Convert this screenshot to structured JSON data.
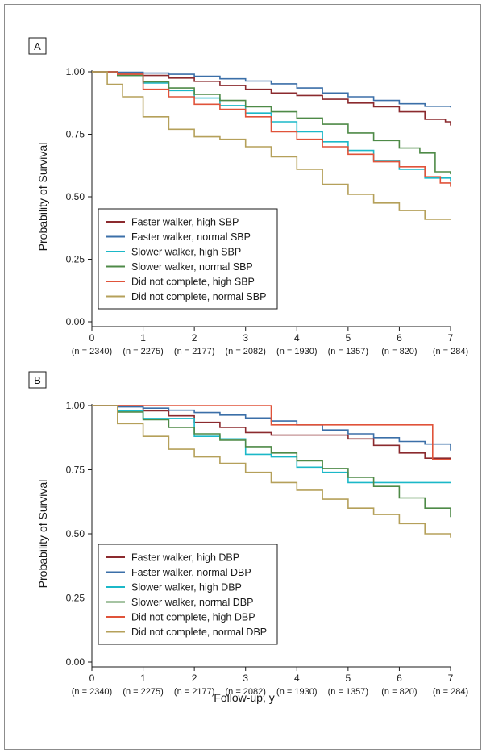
{
  "figure": {
    "common_xlabel": "Follow-up, y"
  },
  "chart_data": [
    {
      "type": "line",
      "panel_label": "A",
      "ylabel": "Probability of Survival",
      "xlabel": "Follow-up, y",
      "xlim": [
        0,
        7
      ],
      "ylim": [
        0,
        1
      ],
      "x_ticks": [
        0,
        1,
        2,
        3,
        4,
        5,
        6,
        7
      ],
      "y_ticks": [
        "0.00",
        "0.25",
        "0.50",
        "0.75",
        "1.00"
      ],
      "n_at_risk": [
        "(n = 2340)",
        "(n = 2275)",
        "(n = 2177)",
        "(n = 2082)",
        "(n = 1930)",
        "(n = 1357)",
        "(n = 820)",
        "(n = 284)"
      ],
      "legend": {
        "position": "bottom-left"
      },
      "series": [
        {
          "name": "Faster walker, high SBP",
          "color": "#8B2A2E",
          "points": [
            [
              0,
              1.0
            ],
            [
              0.5,
              0.995
            ],
            [
              1,
              0.985
            ],
            [
              1.5,
              0.975
            ],
            [
              2,
              0.962
            ],
            [
              2.5,
              0.945
            ],
            [
              3,
              0.93
            ],
            [
              3.5,
              0.915
            ],
            [
              4,
              0.905
            ],
            [
              4.5,
              0.89
            ],
            [
              5,
              0.875
            ],
            [
              5.5,
              0.86
            ],
            [
              6,
              0.84
            ],
            [
              6.5,
              0.81
            ],
            [
              6.9,
              0.8
            ],
            [
              7,
              0.785
            ]
          ]
        },
        {
          "name": "Faster walker, normal SBP",
          "color": "#3B6FA8",
          "points": [
            [
              0,
              1.0
            ],
            [
              0.5,
              0.998
            ],
            [
              1,
              0.995
            ],
            [
              1.5,
              0.99
            ],
            [
              2,
              0.982
            ],
            [
              2.5,
              0.972
            ],
            [
              3,
              0.963
            ],
            [
              3.5,
              0.952
            ],
            [
              4,
              0.935
            ],
            [
              4.5,
              0.915
            ],
            [
              5,
              0.9
            ],
            [
              5.5,
              0.885
            ],
            [
              6,
              0.872
            ],
            [
              6.5,
              0.862
            ],
            [
              7,
              0.857
            ]
          ]
        },
        {
          "name": "Slower walker, high SBP",
          "color": "#1BB8C8",
          "points": [
            [
              0,
              1.0
            ],
            [
              0.5,
              0.985
            ],
            [
              1,
              0.955
            ],
            [
              1.5,
              0.925
            ],
            [
              2,
              0.895
            ],
            [
              2.5,
              0.865
            ],
            [
              3,
              0.835
            ],
            [
              3.5,
              0.8
            ],
            [
              4,
              0.76
            ],
            [
              4.5,
              0.72
            ],
            [
              5,
              0.685
            ],
            [
              5.5,
              0.645
            ],
            [
              6,
              0.61
            ],
            [
              6.5,
              0.575
            ],
            [
              7,
              0.56
            ]
          ]
        },
        {
          "name": "Slower walker, normal SBP",
          "color": "#4E8A47",
          "points": [
            [
              0,
              1.0
            ],
            [
              0.5,
              0.985
            ],
            [
              1,
              0.96
            ],
            [
              1.5,
              0.935
            ],
            [
              2,
              0.91
            ],
            [
              2.5,
              0.885
            ],
            [
              3,
              0.86
            ],
            [
              3.5,
              0.84
            ],
            [
              4,
              0.815
            ],
            [
              4.5,
              0.79
            ],
            [
              5,
              0.755
            ],
            [
              5.5,
              0.725
            ],
            [
              6,
              0.695
            ],
            [
              6.4,
              0.675
            ],
            [
              6.7,
              0.6
            ],
            [
              7,
              0.59
            ]
          ]
        },
        {
          "name": "Did not complete, high SBP",
          "color": "#E0533A",
          "points": [
            [
              0,
              1.0
            ],
            [
              0.5,
              0.99
            ],
            [
              1,
              0.93
            ],
            [
              1.5,
              0.9
            ],
            [
              2,
              0.87
            ],
            [
              2.5,
              0.85
            ],
            [
              3,
              0.82
            ],
            [
              3.5,
              0.76
            ],
            [
              4,
              0.73
            ],
            [
              4.5,
              0.7
            ],
            [
              5,
              0.67
            ],
            [
              5.5,
              0.64
            ],
            [
              6,
              0.62
            ],
            [
              6.5,
              0.58
            ],
            [
              6.8,
              0.555
            ],
            [
              7,
              0.54
            ]
          ]
        },
        {
          "name": "Did not complete, normal SBP",
          "color": "#B5A05A",
          "points": [
            [
              0,
              1.0
            ],
            [
              0.3,
              0.95
            ],
            [
              0.6,
              0.9
            ],
            [
              1,
              0.82
            ],
            [
              1.5,
              0.77
            ],
            [
              2,
              0.74
            ],
            [
              2.5,
              0.73
            ],
            [
              3,
              0.7
            ],
            [
              3.5,
              0.66
            ],
            [
              4,
              0.61
            ],
            [
              4.5,
              0.55
            ],
            [
              5,
              0.51
            ],
            [
              5.5,
              0.475
            ],
            [
              6,
              0.445
            ],
            [
              6.5,
              0.41
            ],
            [
              7,
              0.41
            ]
          ]
        }
      ]
    },
    {
      "type": "line",
      "panel_label": "B",
      "ylabel": "Probability of Survival",
      "xlabel": "Follow-up, y",
      "xlim": [
        0,
        7
      ],
      "ylim": [
        0,
        1
      ],
      "x_ticks": [
        0,
        1,
        2,
        3,
        4,
        5,
        6,
        7
      ],
      "y_ticks": [
        "0.00",
        "0.25",
        "0.50",
        "0.75",
        "1.00"
      ],
      "n_at_risk": [
        "(n = 2340)",
        "(n = 2275)",
        "(n = 2177)",
        "(n = 2082)",
        "(n = 1930)",
        "(n = 1357)",
        "(n = 820)",
        "(n = 284)"
      ],
      "legend": {
        "position": "bottom-left"
      },
      "series": [
        {
          "name": "Faster walker, high DBP",
          "color": "#8B2A2E",
          "points": [
            [
              0,
              1.0
            ],
            [
              1,
              0.98
            ],
            [
              1.5,
              0.96
            ],
            [
              2,
              0.935
            ],
            [
              2.5,
              0.915
            ],
            [
              3,
              0.895
            ],
            [
              3.5,
              0.885
            ],
            [
              4,
              0.885
            ],
            [
              5,
              0.87
            ],
            [
              5.5,
              0.845
            ],
            [
              6,
              0.815
            ],
            [
              6.5,
              0.795
            ],
            [
              7,
              0.795
            ]
          ]
        },
        {
          "name": "Faster walker, normal DBP",
          "color": "#3B6FA8",
          "points": [
            [
              0,
              1.0
            ],
            [
              0.5,
              0.995
            ],
            [
              1,
              0.99
            ],
            [
              1.5,
              0.982
            ],
            [
              2,
              0.973
            ],
            [
              2.5,
              0.963
            ],
            [
              3,
              0.952
            ],
            [
              3.5,
              0.94
            ],
            [
              4,
              0.925
            ],
            [
              4.5,
              0.905
            ],
            [
              5,
              0.89
            ],
            [
              5.5,
              0.875
            ],
            [
              6,
              0.86
            ],
            [
              6.5,
              0.85
            ],
            [
              7,
              0.825
            ]
          ]
        },
        {
          "name": "Slower walker, high DBP",
          "color": "#1BB8C8",
          "points": [
            [
              0,
              1.0
            ],
            [
              0.5,
              0.98
            ],
            [
              1,
              0.95
            ],
            [
              1.5,
              0.95
            ],
            [
              2,
              0.88
            ],
            [
              2.5,
              0.87
            ],
            [
              3,
              0.81
            ],
            [
              3.5,
              0.8
            ],
            [
              4,
              0.76
            ],
            [
              4.5,
              0.74
            ],
            [
              5,
              0.7
            ],
            [
              6,
              0.7
            ],
            [
              7,
              0.7
            ]
          ]
        },
        {
          "name": "Slower walker, normal DBP",
          "color": "#4E8A47",
          "points": [
            [
              0,
              1.0
            ],
            [
              0.5,
              0.975
            ],
            [
              1,
              0.945
            ],
            [
              1.5,
              0.915
            ],
            [
              2,
              0.89
            ],
            [
              2.5,
              0.865
            ],
            [
              3,
              0.84
            ],
            [
              3.5,
              0.815
            ],
            [
              4,
              0.785
            ],
            [
              4.5,
              0.755
            ],
            [
              5,
              0.72
            ],
            [
              5.5,
              0.685
            ],
            [
              6,
              0.64
            ],
            [
              6.5,
              0.6
            ],
            [
              7,
              0.565
            ]
          ]
        },
        {
          "name": "Did not complete, high DBP",
          "color": "#E0533A",
          "points": [
            [
              0,
              1.0
            ],
            [
              3.5,
              1.0
            ],
            [
              3.5,
              0.925
            ],
            [
              6.65,
              0.925
            ],
            [
              6.65,
              0.79
            ],
            [
              7,
              0.79
            ]
          ]
        },
        {
          "name": "Did not complete, normal DBP",
          "color": "#B5A05A",
          "points": [
            [
              0,
              1.0
            ],
            [
              0.5,
              0.93
            ],
            [
              1,
              0.88
            ],
            [
              1.5,
              0.83
            ],
            [
              2,
              0.8
            ],
            [
              2.5,
              0.775
            ],
            [
              3,
              0.74
            ],
            [
              3.5,
              0.7
            ],
            [
              4,
              0.67
            ],
            [
              4.5,
              0.635
            ],
            [
              5,
              0.6
            ],
            [
              5.5,
              0.575
            ],
            [
              6,
              0.54
            ],
            [
              6.5,
              0.5
            ],
            [
              7,
              0.485
            ]
          ]
        }
      ]
    }
  ]
}
